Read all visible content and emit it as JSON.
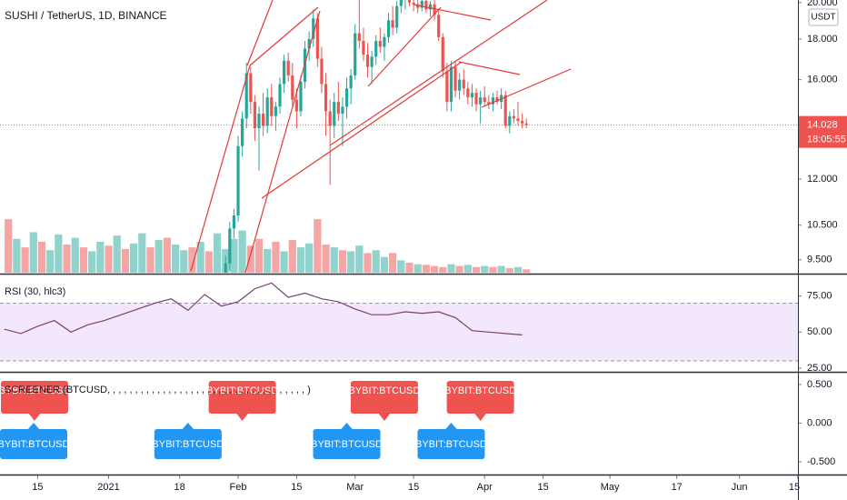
{
  "chart_data": [
    {
      "type": "candlestick",
      "title": "SUSHI / TetherUS, 1D, BINANCE",
      "currency": "USDT",
      "countdown": "18:05:55",
      "up_color": "#26a69a",
      "down_color": "#ef5350",
      "log_scale": true,
      "xlim": [
        "2020-12-06",
        "2021-06-15"
      ],
      "xticks": [
        {
          "value": "2020-12-15",
          "label": "15"
        },
        {
          "value": "2021-01-01",
          "label": "2021"
        },
        {
          "value": "2021-01-18",
          "label": "18"
        },
        {
          "value": "2021-02-01",
          "label": "Feb"
        },
        {
          "value": "2021-02-15",
          "label": "15"
        },
        {
          "value": "2021-03-01",
          "label": "Mar"
        },
        {
          "value": "2021-03-15",
          "label": "15"
        },
        {
          "value": "2021-04-01",
          "label": "Apr"
        },
        {
          "value": "2021-04-15",
          "label": "15"
        },
        {
          "value": "2021-05-01",
          "label": "May"
        },
        {
          "value": "2021-05-17",
          "label": "17"
        },
        {
          "value": "2021-06-01",
          "label": "Jun"
        },
        {
          "value": "2021-06-15",
          "label": "15"
        }
      ],
      "ylim": [
        9.15,
        20.15
      ],
      "yticks": [
        {
          "value": 20,
          "label": "20.000"
        },
        {
          "value": 18,
          "label": "18.000"
        },
        {
          "value": 16,
          "label": "16.000"
        },
        {
          "value": 12,
          "label": "12.000"
        },
        {
          "value": 10.5,
          "label": "10.500"
        },
        {
          "value": 9.5,
          "label": "9.500"
        }
      ],
      "x": [
        "2021-01-29",
        "2021-01-30",
        "2021-01-31",
        "2021-02-01",
        "2021-02-02",
        "2021-02-03",
        "2021-02-04",
        "2021-02-05",
        "2021-02-06",
        "2021-02-07",
        "2021-02-08",
        "2021-02-09",
        "2021-02-10",
        "2021-02-11",
        "2021-02-12",
        "2021-02-13",
        "2021-02-14",
        "2021-02-15",
        "2021-02-16",
        "2021-02-17",
        "2021-02-18",
        "2021-02-19",
        "2021-02-20",
        "2021-02-21",
        "2021-02-22",
        "2021-02-23",
        "2021-02-24",
        "2021-02-25",
        "2021-02-26",
        "2021-02-27",
        "2021-02-28",
        "2021-03-01",
        "2021-03-02",
        "2021-03-03",
        "2021-03-04",
        "2021-03-05",
        "2021-03-06",
        "2021-03-07",
        "2021-03-08",
        "2021-03-09",
        "2021-03-10",
        "2021-03-11",
        "2021-03-12",
        "2021-03-13",
        "2021-03-14",
        "2021-03-15",
        "2021-03-16",
        "2021-03-17",
        "2021-03-18",
        "2021-03-19",
        "2021-03-20",
        "2021-03-21",
        "2021-03-22",
        "2021-03-23",
        "2021-03-24",
        "2021-03-25",
        "2021-03-26",
        "2021-03-27",
        "2021-03-28",
        "2021-03-29",
        "2021-03-30",
        "2021-03-31",
        "2021-04-01",
        "2021-04-02",
        "2021-04-03",
        "2021-04-04",
        "2021-04-05",
        "2021-04-06",
        "2021-04-07",
        "2021-04-08",
        "2021-04-09",
        "2021-04-10",
        "2021-04-11"
      ],
      "ohlc": [
        [
          9.0,
          9.6,
          8.8,
          9.4
        ],
        [
          9.4,
          10.6,
          9.2,
          10.4
        ],
        [
          10.4,
          11.0,
          10.1,
          10.8
        ],
        [
          10.8,
          13.6,
          10.6,
          13.2
        ],
        [
          13.2,
          14.6,
          12.8,
          14.3
        ],
        [
          14.3,
          16.8,
          13.9,
          16.3
        ],
        [
          16.3,
          16.6,
          14.5,
          15.0
        ],
        [
          15.0,
          15.3,
          13.4,
          13.9
        ],
        [
          13.9,
          14.8,
          12.3,
          14.5
        ],
        [
          14.5,
          15.4,
          13.6,
          14.0
        ],
        [
          14.0,
          15.6,
          13.7,
          15.2
        ],
        [
          15.2,
          15.8,
          14.0,
          14.4
        ],
        [
          14.4,
          15.0,
          13.8,
          14.8
        ],
        [
          14.8,
          16.1,
          14.5,
          15.8
        ],
        [
          15.8,
          17.2,
          15.4,
          16.9
        ],
        [
          16.9,
          17.3,
          15.9,
          16.2
        ],
        [
          16.2,
          16.8,
          14.8,
          15.1
        ],
        [
          15.1,
          15.6,
          13.9,
          14.6
        ],
        [
          14.6,
          16.2,
          14.4,
          15.9
        ],
        [
          15.9,
          17.9,
          15.6,
          17.5
        ],
        [
          17.5,
          18.4,
          16.9,
          18.0
        ],
        [
          18.0,
          19.6,
          17.6,
          19.1
        ],
        [
          19.1,
          19.4,
          16.6,
          17.0
        ],
        [
          17.0,
          17.6,
          15.4,
          15.8
        ],
        [
          15.8,
          16.3,
          13.6,
          14.6
        ],
        [
          14.6,
          15.1,
          11.8,
          14.0
        ],
        [
          14.0,
          15.4,
          13.5,
          15.0
        ],
        [
          15.0,
          15.9,
          14.2,
          14.5
        ],
        [
          14.5,
          15.2,
          13.2,
          14.8
        ],
        [
          14.8,
          16.1,
          14.3,
          15.6
        ],
        [
          15.6,
          16.5,
          14.9,
          16.2
        ],
        [
          16.2,
          18.8,
          16.0,
          18.3
        ],
        [
          18.3,
          20.3,
          17.5,
          17.9
        ],
        [
          17.9,
          18.6,
          16.9,
          17.2
        ],
        [
          17.2,
          17.8,
          16.1,
          16.6
        ],
        [
          16.6,
          17.4,
          15.8,
          17.1
        ],
        [
          17.1,
          18.2,
          16.7,
          17.9
        ],
        [
          17.9,
          18.6,
          17.3,
          17.6
        ],
        [
          17.6,
          18.3,
          16.9,
          18.1
        ],
        [
          18.1,
          19.4,
          17.8,
          19.0
        ],
        [
          19.0,
          19.8,
          18.2,
          18.6
        ],
        [
          18.6,
          20.1,
          18.3,
          19.8
        ],
        [
          19.8,
          20.6,
          19.4,
          20.2
        ],
        [
          20.2,
          21.0,
          19.6,
          20.5
        ],
        [
          20.5,
          20.9,
          19.8,
          20.0
        ],
        [
          20.0,
          20.4,
          19.5,
          19.9
        ],
        [
          19.9,
          20.3,
          19.4,
          19.7
        ],
        [
          19.7,
          20.4,
          19.5,
          20.1
        ],
        [
          20.1,
          20.5,
          19.4,
          19.6
        ],
        [
          19.6,
          20.1,
          19.2,
          19.9
        ],
        [
          19.9,
          20.2,
          19.0,
          19.3
        ],
        [
          19.3,
          19.6,
          17.9,
          18.1
        ],
        [
          18.1,
          18.3,
          16.1,
          16.4
        ],
        [
          16.4,
          16.8,
          14.6,
          15.0
        ],
        [
          15.0,
          16.9,
          14.6,
          16.6
        ],
        [
          16.6,
          16.9,
          15.2,
          15.5
        ],
        [
          15.5,
          16.3,
          15.1,
          16.0
        ],
        [
          16.0,
          16.5,
          15.3,
          15.6
        ],
        [
          15.6,
          15.9,
          14.9,
          15.2
        ],
        [
          15.2,
          15.8,
          14.8,
          15.4
        ],
        [
          15.4,
          15.6,
          14.6,
          14.9
        ],
        [
          14.9,
          15.5,
          14.1,
          15.2
        ],
        [
          15.2,
          15.7,
          14.8,
          15.0
        ],
        [
          15.0,
          15.3,
          14.7,
          14.9
        ],
        [
          14.9,
          15.4,
          14.6,
          15.2
        ],
        [
          15.2,
          15.5,
          14.9,
          15.0
        ],
        [
          15.0,
          15.6,
          14.7,
          15.3
        ],
        [
          15.3,
          15.5,
          13.9,
          14.0
        ],
        [
          14.0,
          14.6,
          13.7,
          14.4
        ],
        [
          14.4,
          14.7,
          14.1,
          14.3
        ],
        [
          14.3,
          15.0,
          14.0,
          14.2
        ],
        [
          14.2,
          14.5,
          13.9,
          14.1
        ],
        [
          14.1,
          14.3,
          13.9,
          14.028
        ]
      ],
      "volume": {
        "ylim": [
          0,
          100
        ],
        "up_color": "#8fd3cc",
        "down_color": "#f5a6a4",
        "x": [
          "2020-12-08",
          "2020-12-10",
          "2020-12-12",
          "2020-12-14",
          "2020-12-16",
          "2020-12-18",
          "2020-12-20",
          "2020-12-22",
          "2020-12-24",
          "2020-12-26",
          "2020-12-28",
          "2020-12-30",
          "2021-01-01",
          "2021-01-03",
          "2021-01-05",
          "2021-01-07",
          "2021-01-09",
          "2021-01-11",
          "2021-01-13",
          "2021-01-15",
          "2021-01-17",
          "2021-01-19",
          "2021-01-21",
          "2021-01-23",
          "2021-01-25",
          "2021-01-27",
          "2021-01-29",
          "2021-01-31",
          "2021-02-02",
          "2021-02-04",
          "2021-02-06",
          "2021-02-08",
          "2021-02-10",
          "2021-02-12",
          "2021-02-14",
          "2021-02-16",
          "2021-02-18",
          "2021-02-20",
          "2021-02-22",
          "2021-02-24",
          "2021-02-26",
          "2021-02-28",
          "2021-03-02",
          "2021-03-04",
          "2021-03-06",
          "2021-03-08",
          "2021-03-10",
          "2021-03-12",
          "2021-03-14",
          "2021-03-16",
          "2021-03-18",
          "2021-03-20",
          "2021-03-22",
          "2021-03-24",
          "2021-03-26",
          "2021-03-28",
          "2021-03-30",
          "2021-04-01",
          "2021-04-03",
          "2021-04-05",
          "2021-04-07",
          "2021-04-09",
          "2021-04-11"
        ],
        "values": [
          95,
          60,
          45,
          72,
          55,
          40,
          68,
          50,
          62,
          45,
          38,
          55,
          48,
          66,
          42,
          52,
          70,
          45,
          58,
          62,
          50,
          40,
          45,
          55,
          38,
          70,
          42,
          60,
          75,
          48,
          60,
          42,
          55,
          38,
          58,
          45,
          52,
          95,
          50,
          45,
          40,
          38,
          48,
          35,
          40,
          28,
          35,
          22,
          18,
          15,
          14,
          12,
          10,
          15,
          12,
          14,
          10,
          12,
          10,
          12,
          8,
          10,
          6
        ],
        "up": [
          false,
          true,
          false,
          true,
          false,
          true,
          true,
          false,
          true,
          false,
          true,
          true,
          false,
          true,
          false,
          true,
          true,
          false,
          true,
          false,
          true,
          true,
          false,
          true,
          false,
          true,
          true,
          true,
          true,
          false,
          false,
          true,
          false,
          true,
          false,
          true,
          true,
          false,
          false,
          true,
          false,
          true,
          true,
          false,
          true,
          true,
          false,
          true,
          false,
          true,
          false,
          false,
          false,
          true,
          false,
          true,
          false,
          true,
          false,
          true,
          false,
          true,
          false
        ]
      }
    },
    {
      "type": "line",
      "title": "RSI (30, hlc3)",
      "color": "#7b3f74",
      "bands": [
        30,
        70
      ],
      "band_color": "#f3e8fb",
      "ylim": [
        23.1,
        89.2
      ],
      "yticks": [
        {
          "value": 75,
          "label": "75.00"
        },
        {
          "value": 50,
          "label": "50.00"
        },
        {
          "value": 25,
          "label": "25.00"
        }
      ],
      "x": [
        "2020-12-07",
        "2020-12-11",
        "2020-12-15",
        "2020-12-19",
        "2020-12-23",
        "2020-12-27",
        "2020-12-31",
        "2021-01-04",
        "2021-01-08",
        "2021-01-12",
        "2021-01-16",
        "2021-01-20",
        "2021-01-24",
        "2021-01-28",
        "2021-02-01",
        "2021-02-05",
        "2021-02-09",
        "2021-02-13",
        "2021-02-17",
        "2021-02-21",
        "2021-02-25",
        "2021-03-01",
        "2021-03-05",
        "2021-03-09",
        "2021-03-13",
        "2021-03-17",
        "2021-03-21",
        "2021-03-25",
        "2021-03-29",
        "2021-04-02",
        "2021-04-06",
        "2021-04-10"
      ],
      "values": [
        52,
        49,
        54,
        58,
        50,
        55,
        58,
        62,
        66,
        70,
        73,
        65,
        76,
        68,
        71,
        80,
        84,
        74,
        77,
        73,
        71,
        66,
        62,
        62,
        64,
        63,
        64,
        60,
        51,
        50,
        49,
        48
      ]
    },
    {
      "type": "signals",
      "title": "SCREENER (BTCUSD, , , , , , , , , , , , , , , , , , , , , , , , , , , , , , , , , , , , )",
      "label": "BYBIT:BTCUSD",
      "sell_color": "#ef5350",
      "buy_color": "#2196f3",
      "sell_x": [
        "2020-12-14",
        "2021-02-02",
        "2021-03-08",
        "2021-03-31"
      ],
      "buy_x": [
        "2020-12-13",
        "2021-01-20",
        "2021-02-27",
        "2021-03-24"
      ],
      "ylim": [
        -0.665,
        0.64
      ],
      "yticks": [
        {
          "value": 0.5,
          "label": "0.500"
        },
        {
          "value": 0,
          "label": "0.000"
        },
        {
          "value": -0.5,
          "label": "-0.500"
        }
      ]
    }
  ]
}
